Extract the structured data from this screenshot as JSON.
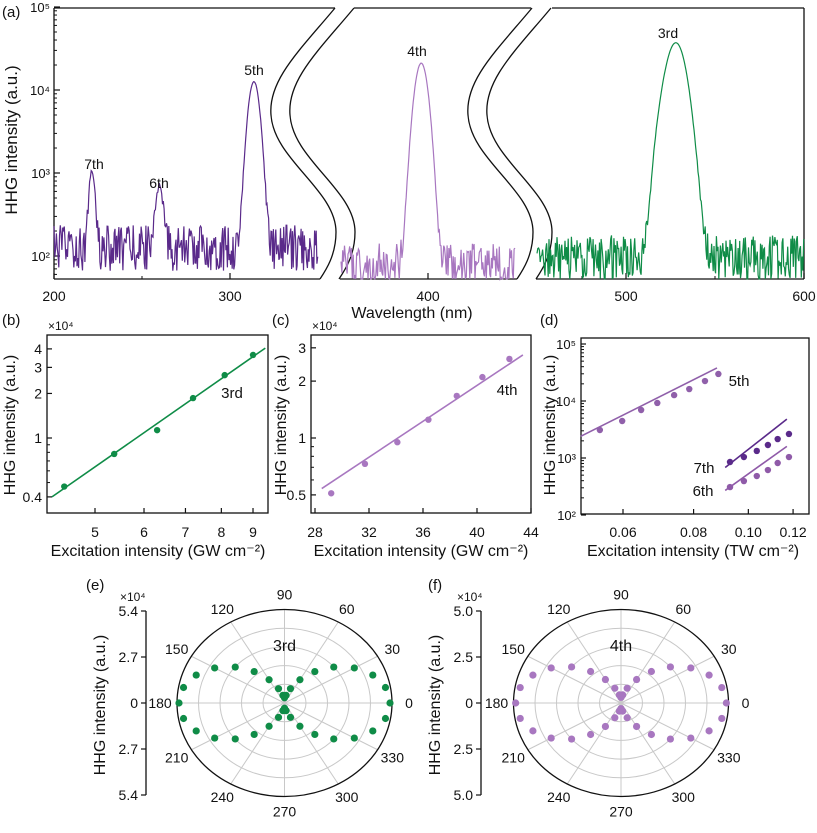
{
  "colors": {
    "dark_purple": "#5a2a8a",
    "mid_purple": "#8f5aa8",
    "light_purple": "#a877c0",
    "green": "#0f8c47",
    "grid": "#c8c8c8"
  },
  "chart_data": [
    {
      "panel": "(a)",
      "type": "line",
      "xlabel": "Wavelength (nm)",
      "ylabel": "HHG intensity (a.u.)",
      "xticks": [
        "200",
        "300",
        "400",
        "500",
        "600"
      ],
      "yticks": [
        "10²",
        "10³",
        "10⁴",
        "10⁵"
      ],
      "ytick_values": [
        100,
        1000,
        10000,
        100000
      ],
      "yscale": "log",
      "ylim": [
        53,
        100000
      ],
      "x_segments": [
        [
          200,
          350
        ],
        [
          355,
          445
        ],
        [
          450,
          600
        ]
      ],
      "segment_backgrounds": [
        125,
        75,
        95
      ],
      "segment_colors": [
        "#5a2a8a",
        "#a877c0",
        "#0f8c47"
      ],
      "series": [
        {
          "name": "7th",
          "peak_nm": 221.6,
          "peak": 920,
          "width_nm": 1.4,
          "segment": 0,
          "color": "#5a2a8a"
        },
        {
          "name": "6th",
          "peak_nm": 259.7,
          "peak": 530,
          "width_nm": 1.9,
          "segment": 0,
          "color": "#5a2a8a"
        },
        {
          "name": "5th",
          "peak_nm": 313.6,
          "peak": 12500,
          "width_nm": 2.6,
          "segment": 0,
          "color": "#8f5aa8"
        },
        {
          "name": "4th",
          "peak_nm": 396.5,
          "peak": 21000,
          "width_nm": 2.8,
          "segment": 1,
          "color": "#a877c0"
        },
        {
          "name": "3rd",
          "peak_nm": 528,
          "peak": 37000,
          "width_nm": 4.6,
          "segment": 2,
          "color": "#0f8c47"
        }
      ]
    },
    {
      "panel": "(b)",
      "type": "scatter",
      "multiplier": "×10⁴",
      "xlabel": "Excitation intensity (GW cm⁻²)",
      "ylabel": "HHG intensity (a.u.)",
      "xscale": "log",
      "yscale": "log",
      "xlim": [
        4.0,
        9.4
      ],
      "ylim": [
        0.31,
        4.97
      ],
      "xticks": [
        "5",
        "6",
        "7",
        "8",
        "9"
      ],
      "yticks": [
        "0.4",
        "1",
        "2",
        "3",
        "4"
      ],
      "series": [
        {
          "name": "3rd",
          "color": "#0f8c47",
          "x": [
            4.46,
            5.37,
            6.3,
            7.2,
            8.1,
            9.0
          ],
          "y": [
            0.47,
            0.78,
            1.13,
            1.86,
            2.66,
            3.64
          ],
          "fit": {
            "x": [
              4.26,
              9.42
            ],
            "y": [
              0.4,
              4.05
            ]
          }
        }
      ]
    },
    {
      "panel": "(c)",
      "type": "scatter",
      "multiplier": "×10⁴",
      "xlabel": "Excitation intensity (GW cm⁻²)",
      "ylabel": "HHG intensity (a.u.)",
      "xscale": "linear",
      "yscale": "log",
      "xlim": [
        27.7,
        44
      ],
      "ylim": [
        0.42,
        3.5
      ],
      "xticks": [
        "28",
        "32",
        "36",
        "40",
        "44"
      ],
      "yticks": [
        "0.5",
        "1",
        "2",
        "3"
      ],
      "series": [
        {
          "name": "4th",
          "color": "#a877c0",
          "x": [
            29.2,
            31.7,
            34.1,
            36.4,
            38.5,
            40.4,
            42.4
          ],
          "y": [
            0.51,
            0.73,
            0.95,
            1.25,
            1.67,
            2.1,
            2.62
          ],
          "fit": {
            "x": [
              28.5,
              43.4
            ],
            "y": [
              0.54,
              2.75
            ]
          }
        }
      ]
    },
    {
      "panel": "(d)",
      "type": "scatter",
      "xlabel": "Excitation intensity (TW cm⁻²)",
      "ylabel": "HHG intensity (a.u.)",
      "xscale": "log",
      "yscale": "log",
      "xlim": [
        0.0505,
        0.128
      ],
      "ylim": [
        100,
        100000
      ],
      "xticks": [
        "0.06",
        "0.08",
        "0.10",
        "0.12"
      ],
      "yticks": [
        "10²",
        "10³",
        "10⁴",
        "10⁵"
      ],
      "ytick_values": [
        100,
        1000,
        10000,
        100000
      ],
      "series": [
        {
          "name": "5th",
          "color": "#9060aa",
          "x": [
            0.0546,
            0.0598,
            0.0646,
            0.069,
            0.0739,
            0.0786,
            0.0838,
            0.0885
          ],
          "y": [
            3100,
            4460,
            6950,
            9230,
            12700,
            16200,
            22400,
            29800
          ],
          "fit": {
            "x": [
              0.0505,
              0.088
            ],
            "y": [
              2400,
              38000
            ]
          }
        },
        {
          "name": "7th",
          "color": "#5a2a8a",
          "x": [
            0.0928,
            0.0982,
            0.1035,
            0.1083,
            0.1127,
            0.118
          ],
          "y": [
            851,
            1040,
            1330,
            1690,
            2150,
            2640
          ],
          "fit": {
            "x": [
              0.091,
              0.117
            ],
            "y": [
              680,
              4800
            ]
          }
        },
        {
          "name": "6th",
          "color": "#8f5aa8",
          "x": [
            0.0928,
            0.0982,
            0.1035,
            0.1083,
            0.1127,
            0.118
          ],
          "y": [
            309,
            394,
            483,
            615,
            817,
            1040
          ],
          "fit": {
            "x": [
              0.091,
              0.117
            ],
            "y": [
              270,
              1600
            ]
          }
        }
      ]
    },
    {
      "panel": "(e)",
      "type": "scatter",
      "coordinates": "polar",
      "multiplier": "×10⁴",
      "ylabel": "HHG intensity (a.u.)",
      "rmax": 5.4,
      "scale_labels": [
        "5.4",
        "2.7",
        "0",
        "2.7",
        "5.4"
      ],
      "angle_labels": [
        "0",
        "30",
        "60",
        "90",
        "120",
        "150",
        "180",
        "210",
        "240",
        "270",
        "300",
        "330"
      ],
      "series": [
        {
          "name": "3rd",
          "color": "#0f8c47",
          "theta": [
            0,
            10,
            20,
            30,
            40,
            50,
            60,
            70,
            80,
            90,
            100,
            110,
            120,
            130,
            140,
            150,
            160,
            170,
            180,
            190,
            200,
            210,
            220,
            230,
            240,
            250,
            260,
            270,
            280,
            290,
            300,
            310,
            320,
            330,
            340,
            350
          ],
          "r": [
            5.3,
            5.15,
            4.72,
            4.05,
            3.23,
            2.37,
            1.55,
            0.88,
            0.45,
            0.3,
            0.45,
            0.88,
            1.55,
            2.37,
            3.23,
            4.05,
            4.72,
            5.15,
            5.3,
            5.15,
            4.72,
            4.05,
            3.23,
            2.37,
            1.55,
            0.88,
            0.45,
            0.3,
            0.45,
            0.88,
            1.55,
            2.37,
            3.23,
            4.05,
            4.72,
            5.15
          ]
        }
      ]
    },
    {
      "panel": "(f)",
      "type": "scatter",
      "coordinates": "polar",
      "multiplier": "×10⁴",
      "ylabel": "HHG intensity (a.u.)",
      "rmax": 5.0,
      "scale_labels": [
        "5.0",
        "2.5",
        "0",
        "2.5",
        "5.0"
      ],
      "angle_labels": [
        "0",
        "30",
        "60",
        "90",
        "120",
        "150",
        "180",
        "210",
        "240",
        "270",
        "300",
        "330"
      ],
      "series": [
        {
          "name": "4th",
          "color": "#a877c0",
          "theta": [
            0,
            10,
            20,
            30,
            40,
            50,
            60,
            70,
            80,
            90,
            100,
            110,
            120,
            130,
            140,
            150,
            160,
            170,
            180,
            190,
            200,
            210,
            220,
            230,
            240,
            250,
            260,
            270,
            280,
            290,
            300,
            310,
            320,
            330,
            340,
            350
          ],
          "r": [
            4.9,
            4.76,
            4.36,
            3.75,
            3.0,
            2.2,
            1.45,
            0.84,
            0.44,
            0.3,
            0.44,
            0.84,
            1.45,
            2.2,
            3.0,
            3.75,
            4.36,
            4.76,
            4.9,
            4.76,
            4.36,
            3.75,
            3.0,
            2.2,
            1.45,
            0.84,
            0.44,
            0.3,
            0.44,
            0.84,
            1.45,
            2.2,
            3.0,
            3.75,
            4.36,
            4.76
          ]
        }
      ]
    }
  ]
}
